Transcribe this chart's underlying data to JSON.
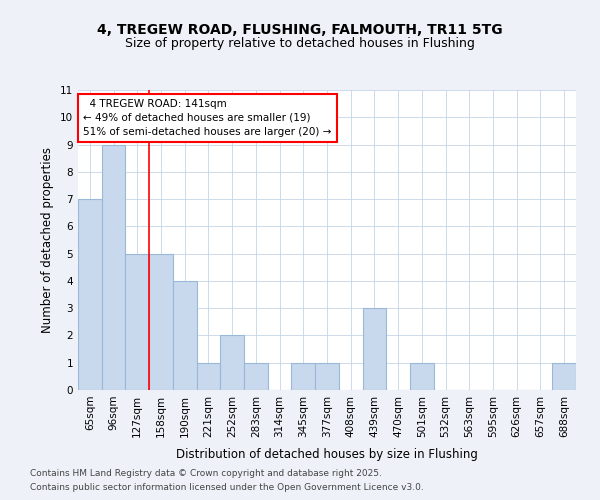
{
  "title1": "4, TREGEW ROAD, FLUSHING, FALMOUTH, TR11 5TG",
  "title2": "Size of property relative to detached houses in Flushing",
  "xlabel": "Distribution of detached houses by size in Flushing",
  "ylabel": "Number of detached properties",
  "categories": [
    "65sqm",
    "96sqm",
    "127sqm",
    "158sqm",
    "190sqm",
    "221sqm",
    "252sqm",
    "283sqm",
    "314sqm",
    "345sqm",
    "377sqm",
    "408sqm",
    "439sqm",
    "470sqm",
    "501sqm",
    "532sqm",
    "563sqm",
    "595sqm",
    "626sqm",
    "657sqm",
    "688sqm"
  ],
  "values": [
    7,
    9,
    5,
    5,
    4,
    1,
    2,
    1,
    0,
    1,
    1,
    0,
    3,
    0,
    1,
    0,
    0,
    0,
    0,
    0,
    1
  ],
  "bar_color": "#c8d8ed",
  "bar_edge_color": "#9ab8d8",
  "annotation_line1": "4 TREGEW ROAD: 141sqm",
  "annotation_line2": "← 49% of detached houses are smaller (19)",
  "annotation_line3": "51% of semi-detached houses are larger (20) →",
  "ylim": [
    0,
    11
  ],
  "yticks": [
    0,
    1,
    2,
    3,
    4,
    5,
    6,
    7,
    8,
    9,
    10,
    11
  ],
  "footnote1": "Contains HM Land Registry data © Crown copyright and database right 2025.",
  "footnote2": "Contains public sector information licensed under the Open Government Licence v3.0.",
  "bg_color": "#eef2f8",
  "plot_bg": "#ffffff",
  "grid_color": "#c5d5e8"
}
